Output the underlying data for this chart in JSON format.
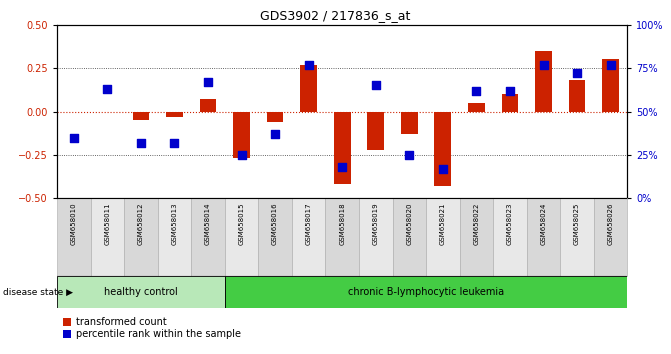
{
  "title": "GDS3902 / 217836_s_at",
  "samples": [
    "GSM658010",
    "GSM658011",
    "GSM658012",
    "GSM658013",
    "GSM658014",
    "GSM658015",
    "GSM658016",
    "GSM658017",
    "GSM658018",
    "GSM658019",
    "GSM658020",
    "GSM658021",
    "GSM658022",
    "GSM658023",
    "GSM658024",
    "GSM658025",
    "GSM658026"
  ],
  "red_bars": [
    0.0,
    0.0,
    -0.05,
    -0.03,
    0.07,
    -0.27,
    -0.06,
    0.27,
    -0.42,
    -0.22,
    -0.13,
    -0.43,
    0.05,
    0.1,
    0.35,
    0.18,
    0.3
  ],
  "blue_dots_pct": [
    35,
    63,
    32,
    32,
    67,
    25,
    37,
    77,
    18,
    65,
    25,
    17,
    62,
    62,
    77,
    72,
    77
  ],
  "healthy_count": 5,
  "disease_groups": [
    "healthy control",
    "chronic B-lymphocytic leukemia"
  ],
  "disease_group_counts": [
    5,
    12
  ],
  "bar_color": "#cc2200",
  "dot_color": "#0000cc",
  "ylim": [
    -0.5,
    0.5
  ],
  "yticks_left": [
    -0.5,
    -0.25,
    0.0,
    0.25,
    0.5
  ],
  "yticks_right": [
    0,
    25,
    50,
    75,
    100
  ],
  "label_transformed": "transformed count",
  "label_percentile": "percentile rank within the sample",
  "disease_state_label": "disease state"
}
